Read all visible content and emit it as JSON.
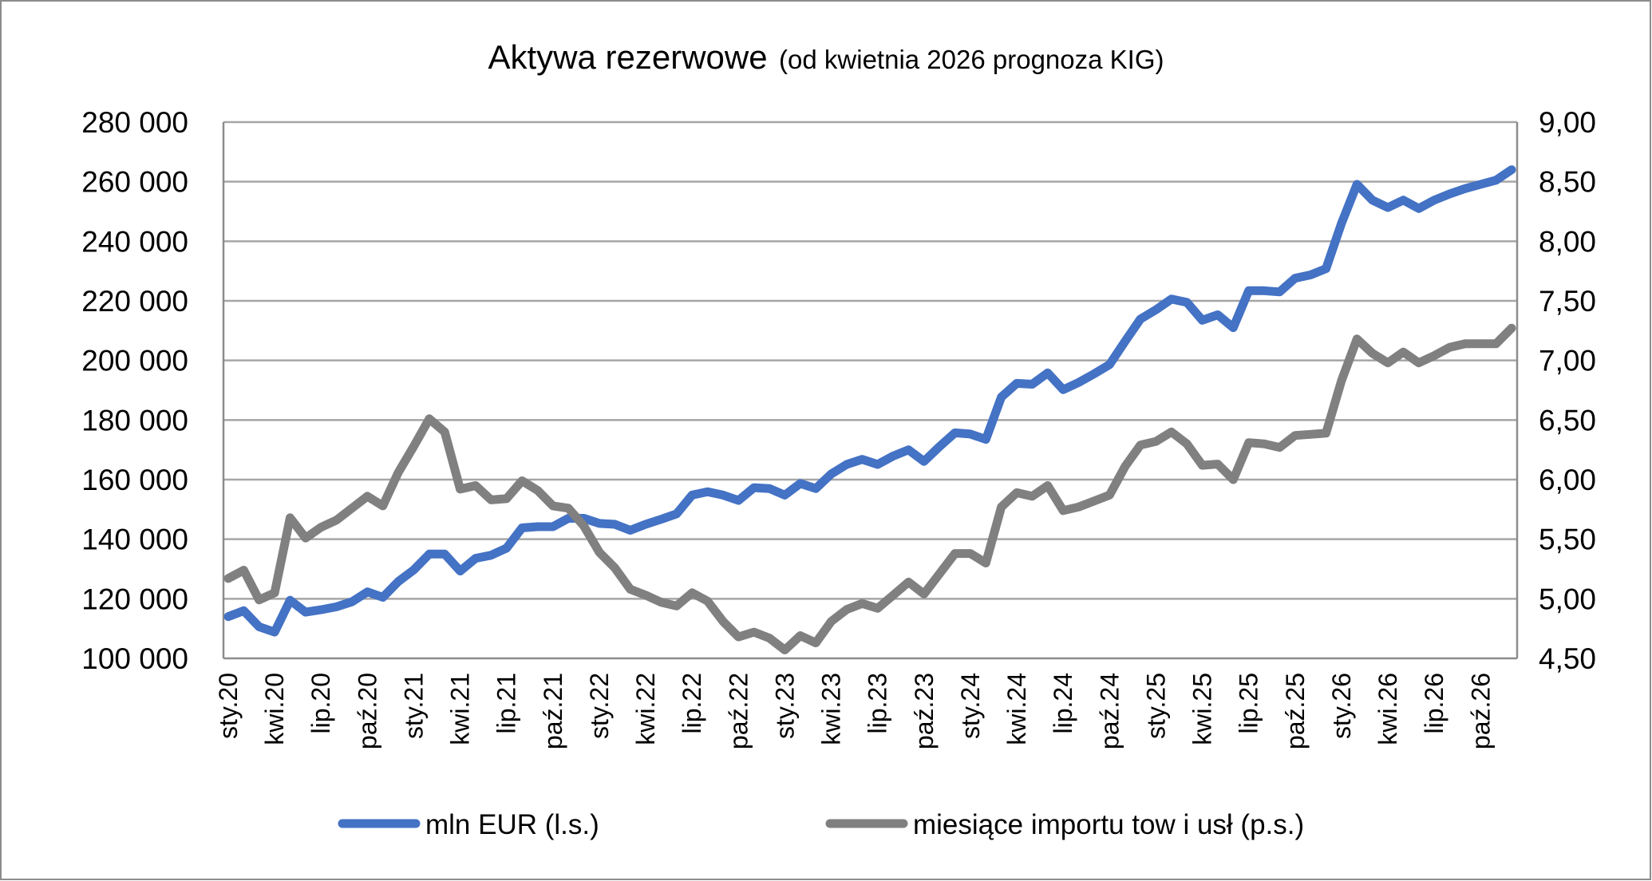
{
  "chart_data": {
    "type": "line",
    "title": "Aktywa rezerwowe",
    "subtitle": "(od kwietnia 2026 prognoza KIG)",
    "x_tick_labels": [
      "sty.20",
      "kwi.20",
      "lip.20",
      "paź.20",
      "sty.21",
      "kwi.21",
      "lip.21",
      "paź.21",
      "sty.22",
      "kwi.22",
      "lip.22",
      "paź.22",
      "sty.23",
      "kwi.23",
      "lip.23",
      "paź.23",
      "sty.24",
      "kwi.24",
      "lip.24",
      "paź.24",
      "sty.25",
      "kwi.25",
      "lip.25",
      "paź.25",
      "sty.26",
      "kwi.26",
      "lip.26",
      "paź.26"
    ],
    "x_range": [
      "sty.20",
      "gru.26"
    ],
    "x_frequency": "monthly",
    "y_left": {
      "range": [
        100000,
        280000
      ],
      "ticks": [
        "100 000",
        "120 000",
        "140 000",
        "160 000",
        "180 000",
        "200 000",
        "220 000",
        "240 000",
        "260 000",
        "280 000"
      ]
    },
    "y_right": {
      "range": [
        4.5,
        9.0
      ],
      "ticks": [
        "4,50",
        "5,00",
        "5,50",
        "6,00",
        "6,50",
        "7,00",
        "7,50",
        "8,00",
        "8,50",
        "9,00"
      ]
    },
    "grid": true,
    "legend_position": "bottom",
    "series": [
      {
        "name": "mln EUR (l.s.)",
        "axis": "left",
        "color": "#4472C4",
        "values": [
          114000,
          116000,
          110600,
          108800,
          119500,
          115500,
          116300,
          117300,
          119000,
          122300,
          120500,
          125800,
          129700,
          135000,
          135000,
          129300,
          133600,
          134600,
          137000,
          143800,
          144200,
          144200,
          147000,
          147000,
          145300,
          145000,
          143000,
          145000,
          146700,
          148500,
          154800,
          155900,
          154800,
          153000,
          157300,
          157000,
          154800,
          158700,
          157000,
          161900,
          165100,
          166800,
          165100,
          167900,
          170000,
          166100,
          171100,
          175700,
          175300,
          173500,
          187700,
          192300,
          192000,
          195800,
          190200,
          192600,
          195500,
          198600,
          206400,
          213900,
          217000,
          220600,
          219500,
          213500,
          215300,
          211000,
          223400,
          223400,
          223000,
          227600,
          228700,
          230800,
          246000,
          259100,
          253800,
          251300,
          253800,
          251000,
          253800,
          255900,
          257700,
          259100,
          260500,
          264000
        ]
      },
      {
        "name": "miesiące importu tow i usł (p.s.)",
        "axis": "right",
        "color": "#808080",
        "values": [
          5.17,
          5.24,
          4.99,
          5.05,
          5.68,
          5.51,
          5.6,
          5.66,
          5.76,
          5.86,
          5.78,
          6.06,
          6.28,
          6.51,
          6.4,
          5.92,
          5.95,
          5.83,
          5.84,
          5.99,
          5.91,
          5.78,
          5.76,
          5.61,
          5.39,
          5.26,
          5.08,
          5.03,
          4.97,
          4.94,
          5.05,
          4.98,
          4.81,
          4.68,
          4.72,
          4.67,
          4.57,
          4.69,
          4.63,
          4.81,
          4.91,
          4.96,
          4.92,
          5.03,
          5.14,
          5.04,
          5.21,
          5.38,
          5.38,
          5.3,
          5.77,
          5.89,
          5.86,
          5.95,
          5.74,
          5.77,
          5.82,
          5.87,
          6.11,
          6.29,
          6.32,
          6.4,
          6.3,
          6.12,
          6.13,
          6.0,
          6.31,
          6.3,
          6.27,
          6.37,
          6.38,
          6.39,
          6.83,
          7.18,
          7.06,
          6.98,
          7.07,
          6.98,
          7.04,
          7.11,
          7.14,
          7.14,
          7.14,
          7.27
        ]
      }
    ]
  }
}
